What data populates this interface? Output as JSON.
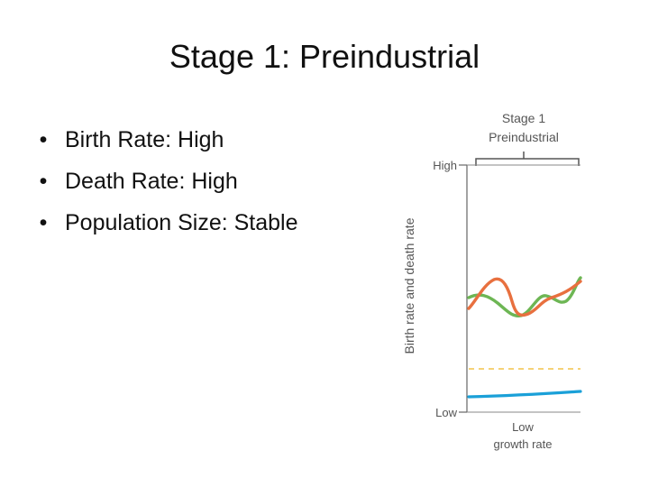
{
  "slide": {
    "title": "Stage 1: Preindustrial",
    "bullets": [
      {
        "bullet": "•",
        "text": "Birth Rate: High"
      },
      {
        "bullet": "•",
        "text": "Death Rate: High"
      },
      {
        "bullet": "•",
        "text": "Population Size: Stable"
      }
    ]
  },
  "figure": {
    "stage_label": "Stage 1",
    "stage_sublabel": "Preindustrial",
    "ylabel": "Birth rate and death rate",
    "y_high": "High",
    "y_low": "Low",
    "footer_line1": "Low",
    "footer_line2": "growth rate",
    "colors": {
      "birth_rate": "#e8703f",
      "death_rate": "#6db654",
      "population": "#1aa0d8",
      "dashed": "#f2c34a",
      "axis": "#666666"
    }
  }
}
